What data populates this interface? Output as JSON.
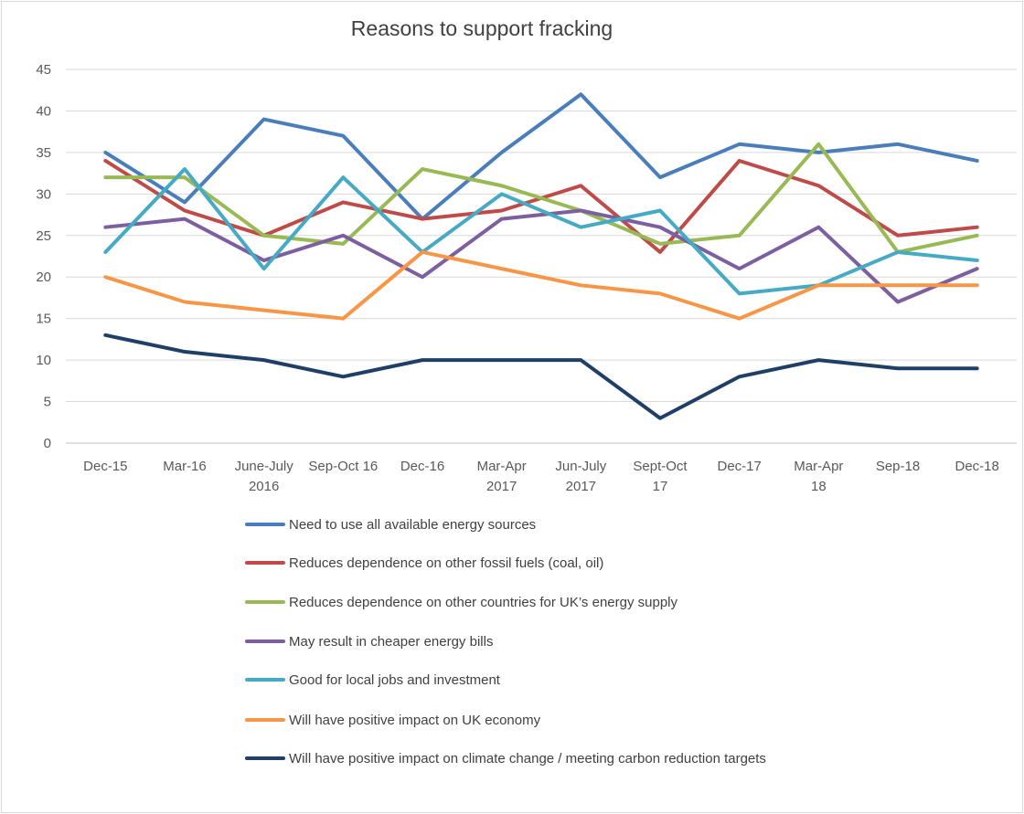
{
  "chart_data": {
    "type": "line",
    "title": "Reasons to support fracking",
    "xlabel": "",
    "ylabel": "",
    "ylim": [
      0,
      45
    ],
    "yticks": [
      0,
      5,
      10,
      15,
      20,
      25,
      30,
      35,
      40,
      45
    ],
    "grid": true,
    "legend_position": "bottom",
    "categories": [
      [
        "Dec-15"
      ],
      [
        "Mar-16"
      ],
      [
        "June-July",
        "2016"
      ],
      [
        "Sep-Oct 16"
      ],
      [
        "Dec-16"
      ],
      [
        "Mar-Apr",
        "2017"
      ],
      [
        "Jun-July",
        "2017"
      ],
      [
        "Sept-Oct",
        "17"
      ],
      [
        "Dec-17"
      ],
      [
        "Mar-Apr",
        "18"
      ],
      [
        "Sep-18"
      ],
      [
        "Dec-18"
      ]
    ],
    "series": [
      {
        "name": "Need to use all available energy sources",
        "color": "#4a7ebb",
        "values": [
          35,
          29,
          39,
          37,
          27,
          35,
          42,
          32,
          36,
          35,
          36,
          34
        ]
      },
      {
        "name": "Reduces dependence on other fossil fuels (coal, oil)",
        "color": "#be4b48",
        "values": [
          34,
          28,
          25,
          29,
          27,
          28,
          31,
          23,
          34,
          31,
          25,
          26
        ]
      },
      {
        "name": "Reduces dependence on other countries for UK’s energy supply",
        "color": "#98b954",
        "values": [
          32,
          32,
          25,
          24,
          33,
          31,
          28,
          24,
          25,
          36,
          23,
          25
        ]
      },
      {
        "name": "May result in cheaper energy bills",
        "color": "#7d5fa0",
        "values": [
          26,
          27,
          22,
          25,
          20,
          27,
          28,
          26,
          21,
          26,
          17,
          21
        ]
      },
      {
        "name": "Good for local jobs and investment",
        "color": "#46aac5",
        "values": [
          23,
          33,
          21,
          32,
          23,
          30,
          26,
          28,
          18,
          19,
          23,
          22
        ]
      },
      {
        "name": "Will have positive impact on UK economy",
        "color": "#f79646",
        "values": [
          20,
          17,
          16,
          15,
          23,
          21,
          19,
          18,
          15,
          19,
          19,
          19
        ]
      },
      {
        "name": "Will have positive impact on climate change / meeting carbon reduction targets",
        "color": "#1f3f66",
        "values": [
          13,
          11,
          10,
          8,
          10,
          10,
          10,
          3,
          8,
          10,
          9,
          9
        ]
      }
    ]
  }
}
